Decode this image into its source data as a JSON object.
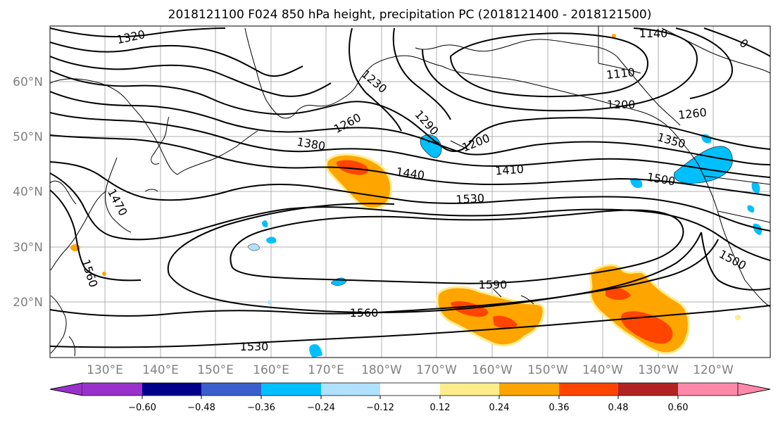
{
  "title": "2018121100 F024 850 hPa height, precipitation PC (2018121400 - 2018121500)",
  "map": {
    "lat_labels": [
      "60°N",
      "50°N",
      "40°N",
      "30°N",
      "20°N"
    ],
    "lon_labels": [
      "130°E",
      "140°E",
      "150°E",
      "160°E",
      "170°E",
      "180°W",
      "170°W",
      "160°W",
      "150°W",
      "140°W",
      "130°W",
      "120°W"
    ]
  },
  "contour_labels": [
    "1320",
    "1230",
    "1260",
    "1290",
    "1200",
    "1140",
    "1110",
    "1200",
    "1260",
    "1350",
    "1380",
    "1440",
    "1410",
    "1500",
    "1530",
    "1470",
    "1560",
    "1590",
    "1560",
    "1530",
    "1500",
    "0"
  ],
  "colorbar": {
    "ticks": [
      "−0.60",
      "−0.48",
      "−0.36",
      "−0.24",
      "−0.12",
      "0.12",
      "0.24",
      "0.36",
      "0.48",
      "0.60"
    ],
    "colors": [
      "#9932cc",
      "#00008b",
      "#3a5fcd",
      "#00bfff",
      "#b0e2ff",
      "#ffffff",
      "#ffec8b",
      "#ffa500",
      "#ff4500",
      "#b22222",
      "#ff88aa"
    ]
  }
}
